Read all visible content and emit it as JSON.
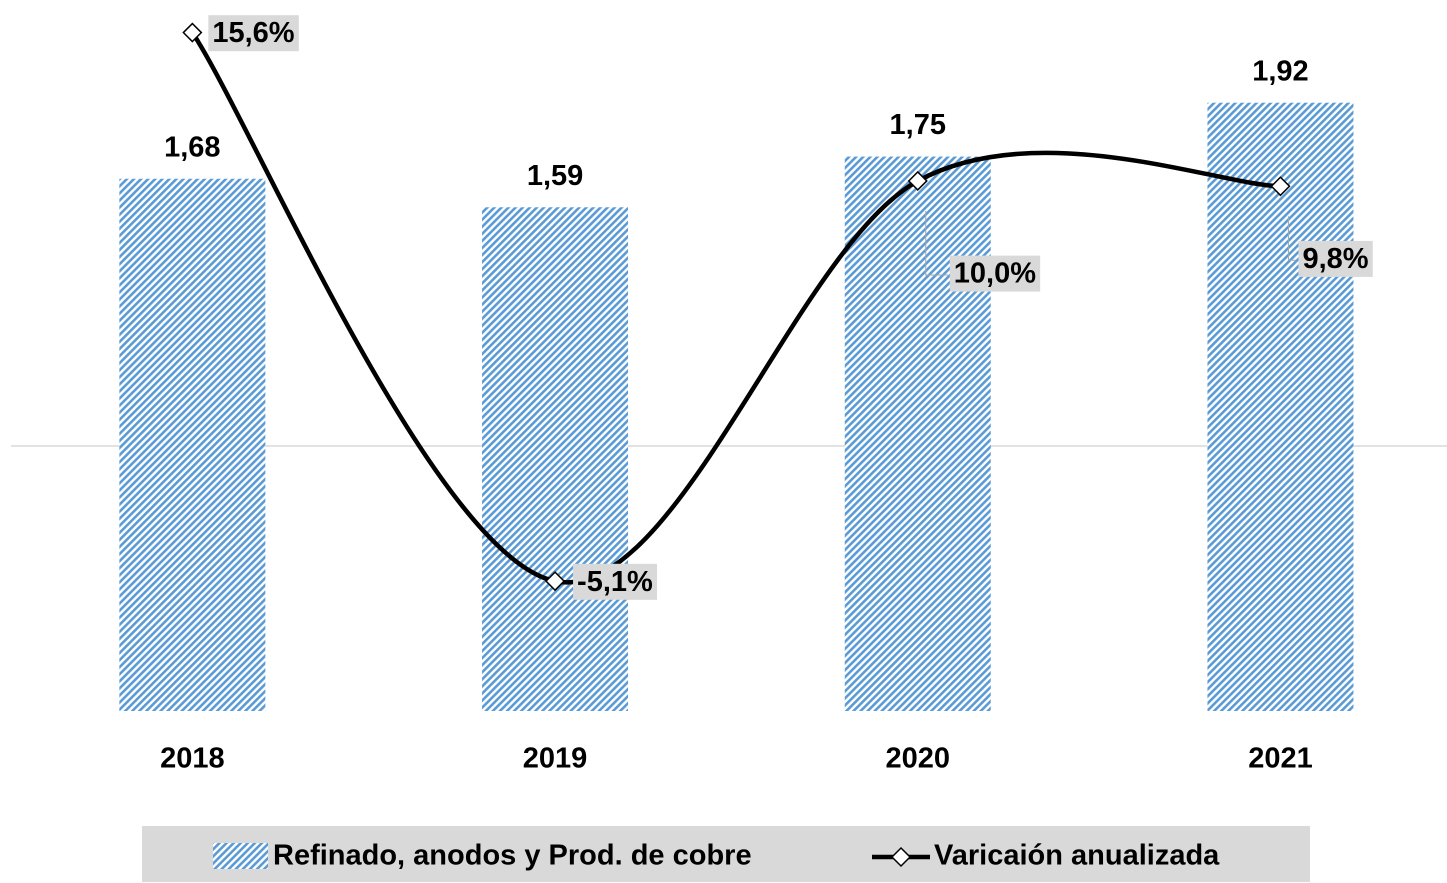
{
  "chart_data": {
    "type": "bar-line",
    "categories": [
      "2018",
      "2019",
      "2020",
      "2021"
    ],
    "series": [
      {
        "name": "Refinado, anodos y Prod. de cobre",
        "type": "bar",
        "color": "#5b9bd5",
        "pattern": "diagonal-hatch",
        "values": [
          1.68,
          1.59,
          1.75,
          1.92
        ],
        "value_labels": [
          "1,68",
          "1,59",
          "1,75",
          "1,92"
        ]
      },
      {
        "name": "Varicaión anualizada",
        "type": "line",
        "axis": "y2",
        "color": "#000000",
        "smooth": true,
        "marker": "diamond",
        "values": [
          15.6,
          -5.1,
          10.0,
          9.8
        ],
        "value_labels": [
          "15,6%",
          "-5,1%",
          "10,0%",
          "9,8%"
        ]
      }
    ],
    "ylim": [
      0,
      2.2
    ],
    "y2lim": [
      -10,
      16.3
    ],
    "y2ticks": [
      0
    ],
    "grid": true,
    "legend": "bottom"
  }
}
